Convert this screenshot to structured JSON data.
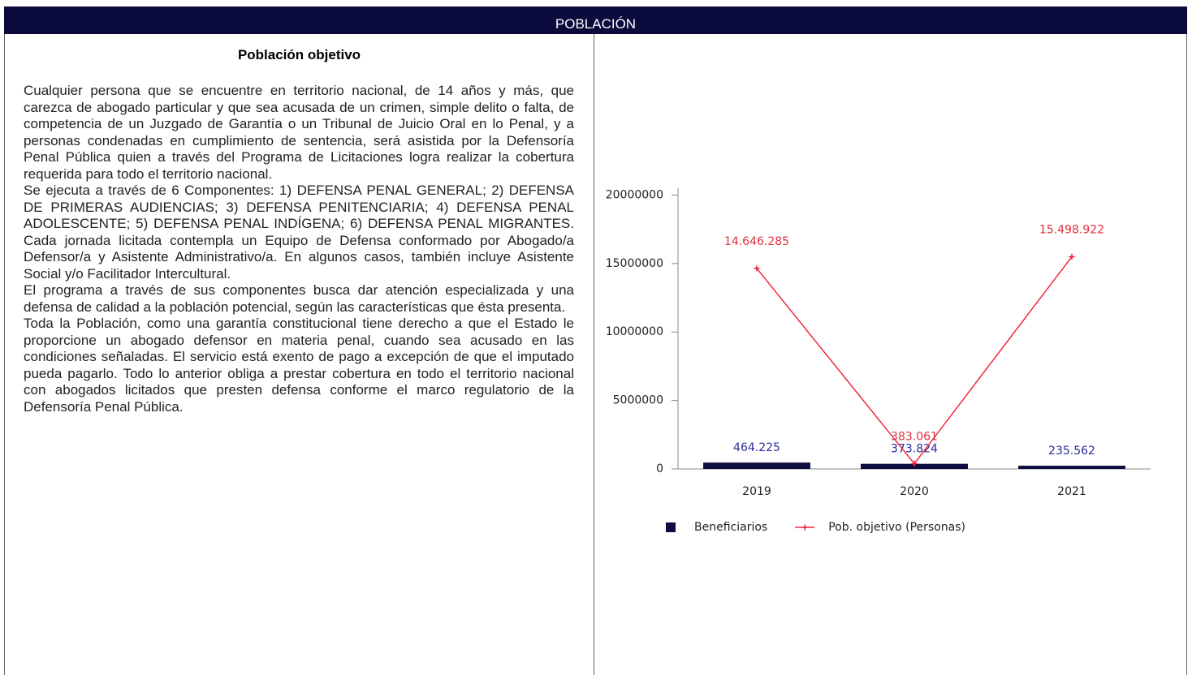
{
  "header": {
    "title": "POBLACIÓN"
  },
  "section": {
    "title": "Población objetivo",
    "paragraphs": [
      "Cualquier persona que se encuentre en territorio nacional, de 14 años y más, que carezca de abogado particular y que sea acusada de un crimen, simple delito o falta, de competencia de un Juzgado de Garantía o un Tribunal de Juicio Oral en lo Penal, y a personas condenadas en cumplimiento de sentencia, será asistida por la Defensoría Penal Pública quien a través del Programa de Licitaciones logra realizar la cobertura requerida para todo el territorio nacional.",
      "Se ejecuta a través de 6 Componentes: 1) DEFENSA PENAL GENERAL; 2) DEFENSA DE PRIMERAS AUDIENCIAS; 3) DEFENSA PENITENCIARIA; 4) DEFENSA PENAL ADOLESCENTE; 5) DEFENSA PENAL INDÍGENA; 6) DEFENSA PENAL MIGRANTES. Cada jornada licitada contempla un Equipo de Defensa conformado por Abogado/a Defensor/a y Asistente Administrativo/a. En algunos casos, también incluye Asistente Social y/o Facilitador Intercultural.",
      "El programa a través de sus componentes busca dar atención especializada y una defensa de calidad a la población potencial, según las características que ésta presenta.",
      "Toda la Población, como una garantía constitucional tiene derecho a que el Estado le proporcione un abogado defensor en materia penal, cuando sea acusado en las condiciones señaladas. El servicio está exento de pago a excepción de que el imputado pueda pagarlo. Todo lo anterior obliga a prestar cobertura en todo el territorio nacional con abogados licitados que presten defensa conforme el marco regulatorio de la Defensoría Penal Pública."
    ]
  },
  "chart_data": {
    "type": "bar",
    "categories": [
      "2019",
      "2020",
      "2021"
    ],
    "series": [
      {
        "name": "Beneficiarios",
        "type": "bar",
        "color": "#0d0d3f",
        "label_color": "#2a2a9a",
        "values": [
          464225,
          373824,
          235562
        ],
        "value_labels": [
          "464.225",
          "373.824",
          "235.562"
        ]
      },
      {
        "name": "Pob. objetivo (Personas)",
        "type": "line",
        "color": "#f0283c",
        "label_color": "#e0303f",
        "values": [
          14646285,
          383061,
          15498922
        ],
        "value_labels": [
          "14.646.285",
          "383.061",
          "15.498.922"
        ]
      }
    ],
    "ylim": [
      0,
      20500000
    ],
    "yticks": [
      0,
      5000000,
      10000000,
      15000000,
      20000000
    ],
    "legend": "bottom"
  }
}
